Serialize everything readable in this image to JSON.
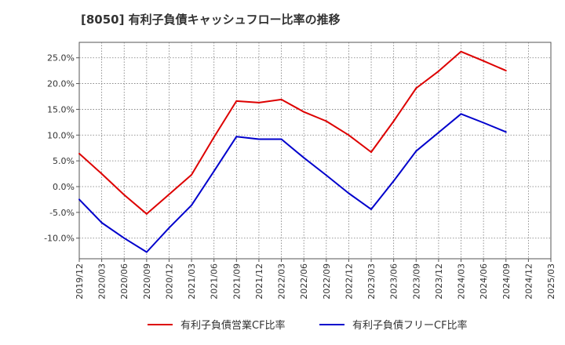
{
  "chart_data": {
    "type": "line",
    "title": "[8050]  有利子負債キャッシュフロー比率の推移",
    "xlabel": "",
    "ylabel": "",
    "ylim": [
      -14,
      28
    ],
    "yticks": [
      -10,
      -5,
      0,
      5,
      10,
      15,
      20,
      25
    ],
    "ytick_labels": [
      "-10.0%",
      "-5.0%",
      "0.0%",
      "5.0%",
      "10.0%",
      "15.0%",
      "20.0%",
      "25.0%"
    ],
    "categories": [
      "2019/12",
      "2020/03",
      "2020/06",
      "2020/09",
      "2020/12",
      "2021/03",
      "2021/06",
      "2021/09",
      "2021/12",
      "2022/03",
      "2022/06",
      "2022/09",
      "2022/12",
      "2023/03",
      "2023/06",
      "2023/09",
      "2023/12",
      "2024/03",
      "2024/06",
      "2024/09",
      "2024/12",
      "2025/03"
    ],
    "grid": true,
    "legend_position": "bottom",
    "series": [
      {
        "name": "有利子負債営業CF比率",
        "color": "#dd0000",
        "values": [
          6.4,
          2.5,
          -1.6,
          -5.3,
          -1.5,
          2.3,
          9.6,
          16.6,
          16.3,
          16.9,
          14.5,
          12.7,
          10.0,
          6.7,
          12.7,
          19.1,
          22.4,
          26.2,
          24.4,
          22.5,
          null,
          null
        ]
      },
      {
        "name": "有利子負債フリーCF比率",
        "color": "#0000cc",
        "values": [
          -2.5,
          -7.0,
          -10.0,
          -12.7,
          -8.0,
          -3.6,
          3.0,
          9.7,
          9.2,
          9.2,
          5.6,
          2.2,
          -1.3,
          -4.4,
          1.1,
          6.9,
          10.5,
          14.1,
          12.4,
          10.6,
          null,
          null
        ]
      }
    ]
  }
}
